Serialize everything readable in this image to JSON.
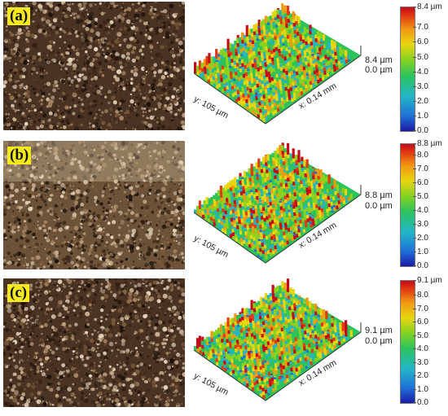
{
  "colors": {
    "label_bg": "#f6ea1a",
    "scale": [
      "#1a1aa6",
      "#22b6c8",
      "#2cc45a",
      "#e8d60f",
      "#f29a12",
      "#c6091a"
    ]
  },
  "panels": [
    {
      "label": "(a)",
      "max_text": "8.4 µm",
      "min_text": "0.0 µm",
      "y_axis": "y: 105 µm",
      "x_axis": "x: 0.14 mm",
      "scale_ticks": [
        "8.4 µm",
        "7.0",
        "6.0",
        "5.0",
        "4.0",
        "3.0",
        "2.0",
        "1.0",
        "0.0"
      ],
      "scale_max": 8.4
    },
    {
      "label": "(b)",
      "max_text": "8.8 µm",
      "min_text": "0.0 µm",
      "y_axis": "y: 105 µm",
      "x_axis": "x: 0.14 mm",
      "scale_ticks": [
        "8.8 µm",
        "8.0",
        "7.0",
        "6.0",
        "5.0",
        "4.0",
        "3.0",
        "2.0",
        "1.0",
        "0.0"
      ],
      "scale_max": 8.8
    },
    {
      "label": "(c)",
      "max_text": "9.1 µm",
      "min_text": "0.0 µm",
      "y_axis": "y: 105 µm",
      "x_axis": "x: 0.14 mm",
      "scale_ticks": [
        "9.1 µm",
        "8.0",
        "7.0",
        "6.0",
        "5.0",
        "4.0",
        "3.0",
        "2.0",
        "1.0",
        "0.0"
      ],
      "scale_max": 9.1
    }
  ]
}
